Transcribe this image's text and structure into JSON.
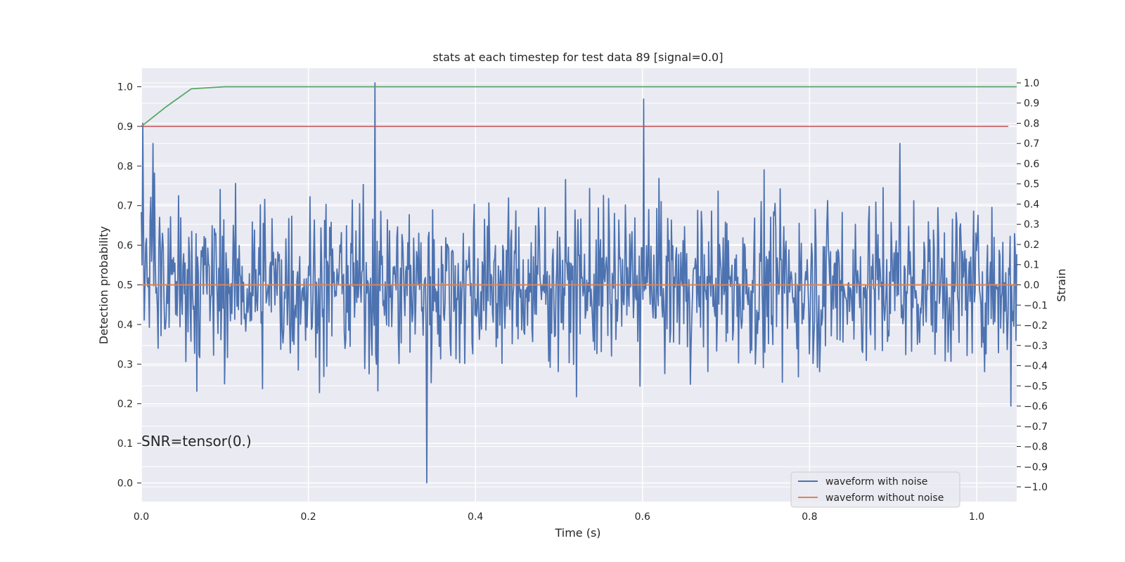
{
  "chart_data": {
    "type": "line",
    "title": "stats at each timestep for test data 89 [signal=0.0]",
    "xlabel": "Time (s)",
    "ylabel_left": "Detection probability",
    "ylabel_right": "Strain",
    "xlim": [
      0.0,
      1.048
    ],
    "ylim_left": [
      -0.047,
      1.047
    ],
    "ylim_right": [
      -1.073,
      1.073
    ],
    "x_ticks": [
      "0.0",
      "0.2",
      "0.4",
      "0.6",
      "0.8",
      "1.0"
    ],
    "x_tick_values": [
      0.0,
      0.2,
      0.4,
      0.6,
      0.8,
      1.0
    ],
    "y_left_ticks": [
      "0.0",
      "0.1",
      "0.2",
      "0.3",
      "0.4",
      "0.5",
      "0.6",
      "0.7",
      "0.8",
      "0.9",
      "1.0"
    ],
    "y_left_tick_values": [
      0.0,
      0.1,
      0.2,
      0.3,
      0.4,
      0.5,
      0.6,
      0.7,
      0.8,
      0.9,
      1.0
    ],
    "y_right_ticks": [
      "1.0",
      "0.9",
      "0.8",
      "0.7",
      "0.6",
      "0.5",
      "0.4",
      "0.3",
      "0.2",
      "0.1",
      "0.0",
      "−0.1",
      "−0.2",
      "−0.3",
      "−0.4",
      "−0.5",
      "−0.6",
      "−0.7",
      "−0.8",
      "−0.9",
      "−1.0"
    ],
    "y_right_tick_values": [
      1.0,
      0.9,
      0.8,
      0.7,
      0.6,
      0.5,
      0.4,
      0.3,
      0.2,
      0.1,
      0.0,
      -0.1,
      -0.2,
      -0.3,
      -0.4,
      -0.5,
      -0.6,
      -0.7,
      -0.8,
      -0.9,
      -1.0
    ],
    "grid": true,
    "legend_position": "lower-right",
    "annotation": "SNR=tensor(0.)",
    "series": [
      {
        "name": "waveform with noise",
        "axis": "right",
        "color": "#4c72b0",
        "x_range": [
          0.0,
          1.048
        ],
        "n_points": 1200,
        "description_values_sampled": [
          0.8,
          -0.5,
          0.1,
          0.3,
          -0.6,
          0.6,
          -0.2,
          0.9,
          0.2,
          -0.4,
          0.5,
          0.0,
          -0.3,
          0.4,
          -0.7,
          0.7,
          -0.1,
          0.2,
          -0.5,
          0.3
        ],
        "notable_peaks": [
          {
            "x": 0.002,
            "y": 0.8
          },
          {
            "x": 0.014,
            "y": 0.7
          },
          {
            "x": 0.28,
            "y": 1.0
          },
          {
            "x": 0.342,
            "y": -0.98
          },
          {
            "x": 0.601,
            "y": 0.92
          },
          {
            "x": 0.908,
            "y": 0.7
          },
          {
            "x": 1.041,
            "y": -0.6
          }
        ],
        "amplitude": 0.45
      },
      {
        "name": "waveform without noise",
        "axis": "right",
        "color": "#dd8452",
        "x": [
          0.0,
          1.048
        ],
        "y": [
          0.0,
          0.0
        ]
      },
      {
        "name": "",
        "axis": "left",
        "color": "#55a868",
        "x": [
          0.0,
          0.03,
          0.06,
          0.1,
          0.2,
          1.048
        ],
        "y": [
          0.9,
          0.95,
          0.995,
          1.0,
          1.0,
          1.0
        ]
      },
      {
        "name": "",
        "axis": "left",
        "color": "#c44e52",
        "x": [
          0.0,
          1.038
        ],
        "y": [
          0.9,
          0.9
        ]
      }
    ]
  }
}
